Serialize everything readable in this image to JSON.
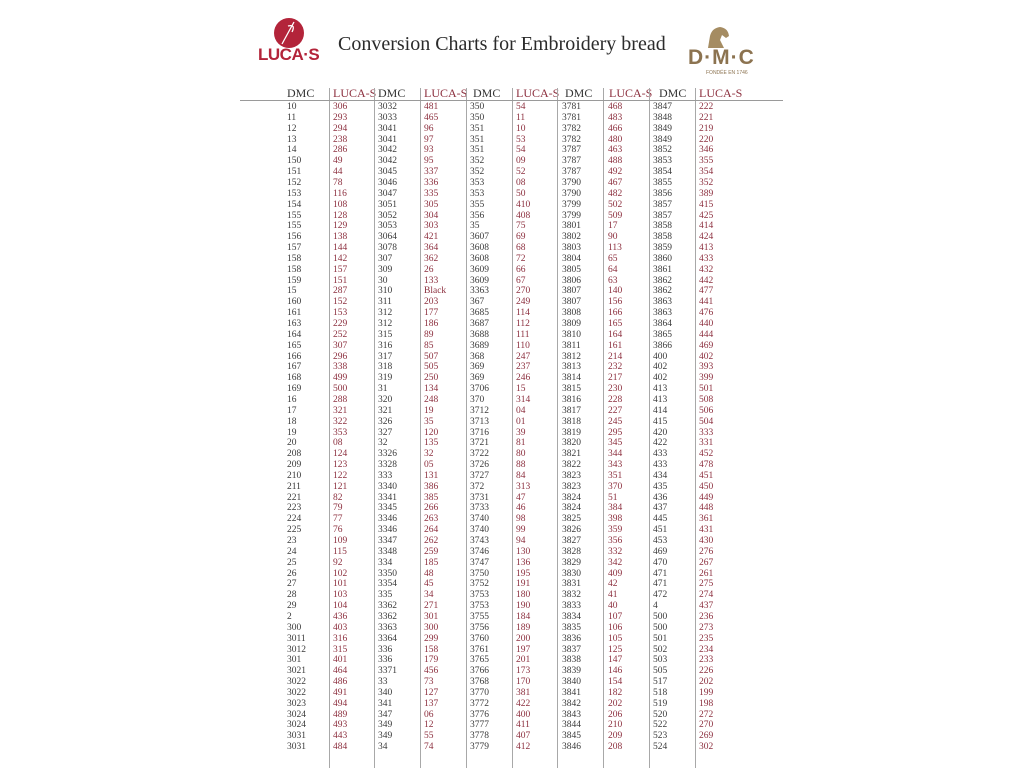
{
  "document": {
    "title": "Conversion Charts for Embroidery bread",
    "logos": {
      "left": {
        "text": "LUCA·S",
        "color": "#b3243a"
      },
      "right": {
        "text": "D·M·C",
        "subtext": "FONDÉE EN 1746",
        "color": "#8c7350"
      }
    },
    "colors": {
      "dmc_text": "#3a3a3a",
      "lucas_text": "#8c2f3e"
    }
  },
  "table": {
    "headers": [
      "DMC",
      "LUCA-S",
      "DMC",
      "LUCA-S",
      "DMC",
      "LUCA-S",
      "DMC",
      "LUCA-S",
      "DMC",
      "LUCA-S"
    ],
    "groups": [
      {
        "dmc": [
          "10",
          "11",
          "12",
          "13",
          "14",
          "150",
          "151",
          "152",
          "153",
          "154",
          "155",
          "155",
          "156",
          "157",
          "158",
          "158",
          "159",
          "15",
          "160",
          "161",
          "163",
          "164",
          "165",
          "166",
          "167",
          "168",
          "169",
          "16",
          "17",
          "18",
          "19",
          "20",
          "208",
          "209",
          "210",
          "211",
          "221",
          "223",
          "224",
          "225",
          "23",
          "24",
          "25",
          "26",
          "27",
          "28",
          "29",
          "2",
          "300",
          "3011",
          "3012",
          "301",
          "3021",
          "3022",
          "3022",
          "3023",
          "3024",
          "3024",
          "3031",
          "3031"
        ],
        "lucas": [
          "306",
          "293",
          "294",
          "238",
          "286",
          "49",
          "44",
          "78",
          "116",
          "108",
          "128",
          "129",
          "138",
          "144",
          "142",
          "157",
          "151",
          "287",
          "152",
          "153",
          "229",
          "252",
          "307",
          "296",
          "338",
          "499",
          "500",
          "288",
          "321",
          "322",
          "353",
          "08",
          "124",
          "123",
          "122",
          "121",
          "82",
          "79",
          "77",
          "76",
          "109",
          "115",
          "92",
          "102",
          "101",
          "103",
          "104",
          "436",
          "403",
          "316",
          "315",
          "401",
          "464",
          "486",
          "491",
          "494",
          "489",
          "493",
          "443",
          "484"
        ]
      },
      {
        "dmc": [
          "3032",
          "3033",
          "3041",
          "3041",
          "3042",
          "3042",
          "3045",
          "3046",
          "3047",
          "3051",
          "3052",
          "3053",
          "3064",
          "3078",
          "307",
          "309",
          "30",
          "310",
          "311",
          "312",
          "312",
          "315",
          "316",
          "317",
          "318",
          "319",
          "31",
          "320",
          "321",
          "326",
          "327",
          "32",
          "3326",
          "3328",
          "333",
          "3340",
          "3341",
          "3345",
          "3346",
          "3346",
          "3347",
          "3348",
          "334",
          "3350",
          "3354",
          "335",
          "3362",
          "3362",
          "3363",
          "3364",
          "336",
          "336",
          "3371",
          "33",
          "340",
          "341",
          "347",
          "349",
          "349",
          "34"
        ],
        "lucas": [
          "481",
          "465",
          "96",
          "97",
          "93",
          "95",
          "337",
          "336",
          "335",
          "305",
          "304",
          "303",
          "421",
          "364",
          "362",
          "26",
          "133",
          "Black",
          "203",
          "177",
          "186",
          "89",
          "85",
          "507",
          "505",
          "250",
          "134",
          "248",
          "19",
          "35",
          "120",
          "135",
          "32",
          "05",
          "131",
          "386",
          "385",
          "266",
          "263",
          "264",
          "262",
          "259",
          "185",
          "48",
          "45",
          "34",
          "271",
          "301",
          "300",
          "299",
          "158",
          "179",
          "456",
          "73",
          "127",
          "137",
          "06",
          "12",
          "55",
          "74"
        ]
      },
      {
        "dmc": [
          "350",
          "350",
          "351",
          "351",
          "351",
          "352",
          "352",
          "353",
          "353",
          "355",
          "356",
          "35",
          "3607",
          "3608",
          "3608",
          "3609",
          "3609",
          "3363",
          "367",
          "3685",
          "3687",
          "3688",
          "3689",
          "368",
          "369",
          "369",
          "3706",
          "370",
          "3712",
          "3713",
          "3716",
          "3721",
          "3722",
          "3726",
          "3727",
          "372",
          "3731",
          "3733",
          "3740",
          "3740",
          "3743",
          "3746",
          "3747",
          "3750",
          "3752",
          "3753",
          "3753",
          "3755",
          "3756",
          "3760",
          "3761",
          "3765",
          "3766",
          "3768",
          "3770",
          "3772",
          "3776",
          "3777",
          "3778",
          "3779"
        ],
        "lucas": [
          "54",
          "11",
          "10",
          "53",
          "54",
          "09",
          "52",
          "08",
          "50",
          "410",
          "408",
          "75",
          "69",
          "68",
          "72",
          "66",
          "67",
          "270",
          "249",
          "114",
          "112",
          "111",
          "110",
          "247",
          "237",
          "246",
          "15",
          "314",
          "04",
          "01",
          "39",
          "81",
          "80",
          "88",
          "84",
          "313",
          "47",
          "46",
          "98",
          "99",
          "94",
          "130",
          "136",
          "195",
          "191",
          "180",
          "190",
          "184",
          "189",
          "200",
          "197",
          "201",
          "173",
          "170",
          "381",
          "422",
          "400",
          "411",
          "407",
          "412"
        ]
      },
      {
        "dmc": [
          "3781",
          "3781",
          "3782",
          "3782",
          "3787",
          "3787",
          "3787",
          "3790",
          "3790",
          "3799",
          "3799",
          "3801",
          "3802",
          "3803",
          "3804",
          "3805",
          "3806",
          "3807",
          "3807",
          "3808",
          "3809",
          "3810",
          "3811",
          "3812",
          "3813",
          "3814",
          "3815",
          "3816",
          "3817",
          "3818",
          "3819",
          "3820",
          "3821",
          "3822",
          "3823",
          "3823",
          "3824",
          "3824",
          "3825",
          "3826",
          "3827",
          "3828",
          "3829",
          "3830",
          "3831",
          "3832",
          "3833",
          "3834",
          "3835",
          "3836",
          "3837",
          "3838",
          "3839",
          "3840",
          "3841",
          "3842",
          "3843",
          "3844",
          "3845",
          "3846"
        ],
        "lucas": [
          "468",
          "483",
          "466",
          "480",
          "463",
          "488",
          "492",
          "467",
          "482",
          "502",
          "509",
          "17",
          "90",
          "113",
          "65",
          "64",
          "63",
          "140",
          "156",
          "166",
          "165",
          "164",
          "161",
          "214",
          "232",
          "217",
          "230",
          "228",
          "227",
          "245",
          "295",
          "345",
          "344",
          "343",
          "351",
          "370",
          "51",
          "384",
          "398",
          "359",
          "356",
          "332",
          "342",
          "409",
          "42",
          "41",
          "40",
          "107",
          "106",
          "105",
          "125",
          "147",
          "146",
          "154",
          "182",
          "202",
          "206",
          "210",
          "209",
          "208"
        ]
      },
      {
        "dmc": [
          "3847",
          "3848",
          "3849",
          "3849",
          "3852",
          "3853",
          "3854",
          "3855",
          "3856",
          "3857",
          "3857",
          "3858",
          "3858",
          "3859",
          "3860",
          "3861",
          "3862",
          "3862",
          "3863",
          "3863",
          "3864",
          "3865",
          "3866",
          "400",
          "402",
          "402",
          "413",
          "413",
          "414",
          "415",
          "420",
          "422",
          "433",
          "433",
          "434",
          "435",
          "436",
          "437",
          "445",
          "451",
          "453",
          "469",
          "470",
          "471",
          "471",
          "472",
          "4",
          "500",
          "500",
          "501",
          "502",
          "503",
          "505",
          "517",
          "518",
          "519",
          "520",
          "522",
          "523",
          "524"
        ],
        "lucas": [
          "222",
          "221",
          "219",
          "220",
          "346",
          "355",
          "354",
          "352",
          "389",
          "415",
          "425",
          "414",
          "424",
          "413",
          "433",
          "432",
          "442",
          "477",
          "441",
          "476",
          "440",
          "444",
          "469",
          "402",
          "393",
          "399",
          "501",
          "508",
          "506",
          "504",
          "333",
          "331",
          "452",
          "478",
          "451",
          "450",
          "449",
          "448",
          "361",
          "431",
          "430",
          "276",
          "267",
          "261",
          "275",
          "274",
          "437",
          "236",
          "273",
          "235",
          "234",
          "233",
          "226",
          "202",
          "199",
          "198",
          "272",
          "270",
          "269",
          "302"
        ]
      }
    ]
  }
}
